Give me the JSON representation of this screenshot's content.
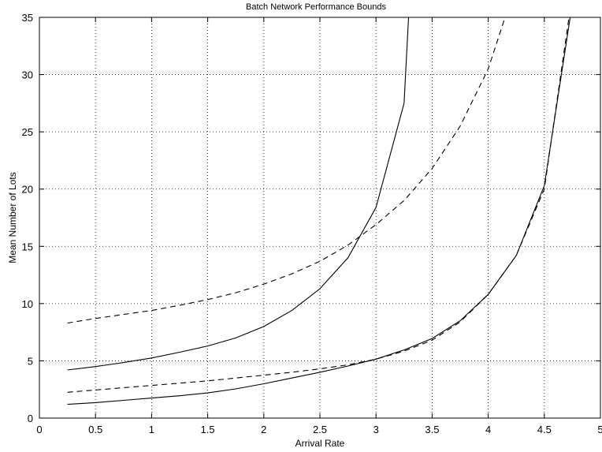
{
  "chart_data": {
    "type": "line",
    "title": "Batch Network Performance Bounds",
    "xlabel": "Arrival Rate",
    "ylabel": "Mean Number of Lots",
    "xlim": [
      0,
      5
    ],
    "ylim": [
      0,
      35
    ],
    "xticks": [
      0,
      0.5,
      1,
      1.5,
      2,
      2.5,
      3,
      3.5,
      4,
      4.5,
      5
    ],
    "yticks": [
      0,
      5,
      10,
      15,
      20,
      25,
      30,
      35
    ],
    "xtick_labels": [
      "0",
      "0.5",
      "1",
      "1.5",
      "2",
      "2.5",
      "3",
      "3.5",
      "4",
      "4.5",
      "5"
    ],
    "ytick_labels": [
      "0",
      "5",
      "10",
      "15",
      "20",
      "25",
      "30",
      "35"
    ],
    "grid": true,
    "series": [
      {
        "style": "solid",
        "x": [
          0.25,
          0.5,
          0.75,
          1.0,
          1.25,
          1.5,
          1.75,
          2.0,
          2.25,
          2.5,
          2.75,
          3.0,
          3.25,
          3.29
        ],
        "y": [
          4.2,
          4.5,
          4.85,
          5.25,
          5.75,
          6.3,
          7.0,
          8.0,
          9.4,
          11.3,
          14.0,
          18.4,
          27.5,
          35
        ]
      },
      {
        "style": "dashed",
        "x": [
          0.25,
          0.5,
          0.75,
          1.0,
          1.25,
          1.5,
          1.75,
          2.0,
          2.25,
          2.5,
          2.75,
          3.0,
          3.25,
          3.5,
          3.75,
          4.0,
          4.15
        ],
        "y": [
          8.3,
          8.7,
          9.05,
          9.4,
          9.85,
          10.35,
          10.95,
          11.7,
          12.6,
          13.7,
          15.1,
          16.9,
          19.0,
          21.8,
          25.5,
          30.5,
          35
        ]
      },
      {
        "style": "solid",
        "x": [
          0.25,
          0.5,
          0.75,
          1.0,
          1.25,
          1.5,
          1.75,
          2.0,
          2.25,
          2.5,
          2.75,
          3.0,
          3.25,
          3.5,
          3.75,
          4.0,
          4.25,
          4.5,
          4.73
        ],
        "y": [
          1.2,
          1.35,
          1.55,
          1.75,
          1.95,
          2.2,
          2.55,
          3.0,
          3.5,
          4.0,
          4.55,
          5.15,
          5.95,
          6.95,
          8.5,
          10.8,
          14.2,
          20.3,
          35
        ]
      },
      {
        "style": "dashed",
        "x": [
          0.25,
          0.5,
          0.75,
          1.0,
          1.25,
          1.5,
          1.75,
          2.0,
          2.25,
          2.5,
          2.75,
          3.0,
          3.25,
          3.5,
          3.75,
          4.0,
          4.25,
          4.5,
          4.72
        ],
        "y": [
          2.25,
          2.45,
          2.65,
          2.85,
          3.05,
          3.25,
          3.5,
          3.75,
          4.0,
          4.3,
          4.65,
          5.15,
          5.85,
          6.8,
          8.4,
          10.8,
          14.2,
          20.0,
          35
        ]
      }
    ]
  }
}
